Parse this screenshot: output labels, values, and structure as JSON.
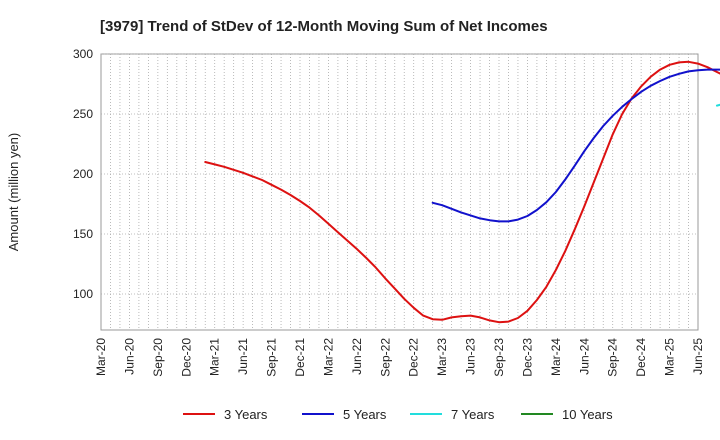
{
  "chart_data": {
    "type": "line",
    "title": "[3979]  Trend of StDev of 12-Month Moving Sum of Net Incomes",
    "ylabel": "Amount (million yen)",
    "xlabel": "",
    "ylim": [
      70,
      300
    ],
    "yticks": [
      100,
      150,
      200,
      250,
      300
    ],
    "x_categories": [
      "Mar-20",
      "Jun-20",
      "Sep-20",
      "Dec-20",
      "Mar-21",
      "Jun-21",
      "Sep-21",
      "Dec-21",
      "Mar-22",
      "Jun-22",
      "Sep-22",
      "Dec-22",
      "Mar-23",
      "Jun-23",
      "Sep-23",
      "Dec-23",
      "Mar-24",
      "Jun-24",
      "Sep-24",
      "Dec-24",
      "Mar-25",
      "Jun-25"
    ],
    "grid": true,
    "legend_position": "bottom",
    "series": [
      {
        "name": "3 Years",
        "color": "#dd1111",
        "points": [
          [
            "Feb-21",
            210
          ],
          [
            "Mar-21",
            208
          ],
          [
            "Apr-21",
            206
          ],
          [
            "May-21",
            203.5
          ],
          [
            "Jun-21",
            201
          ],
          [
            "Jul-21",
            198
          ],
          [
            "Aug-21",
            195
          ],
          [
            "Sep-21",
            191
          ],
          [
            "Oct-21",
            187
          ],
          [
            "Nov-21",
            182.5
          ],
          [
            "Dec-21",
            177.5
          ],
          [
            "Jan-22",
            172
          ],
          [
            "Feb-22",
            165.5
          ],
          [
            "Mar-22",
            158.5
          ],
          [
            "Apr-22",
            151.5
          ],
          [
            "May-22",
            144.5
          ],
          [
            "Jun-22",
            137.5
          ],
          [
            "Jul-22",
            130
          ],
          [
            "Aug-22",
            122
          ],
          [
            "Sep-22",
            113
          ],
          [
            "Oct-22",
            104.5
          ],
          [
            "Nov-22",
            96
          ],
          [
            "Dec-22",
            88.5
          ],
          [
            "Jan-23",
            82
          ],
          [
            "Feb-23",
            79
          ],
          [
            "Mar-23",
            78.5
          ],
          [
            "Apr-23",
            80.5
          ],
          [
            "May-23",
            81.5
          ],
          [
            "Jun-23",
            82
          ],
          [
            "Jul-23",
            80.5
          ],
          [
            "Aug-23",
            78
          ],
          [
            "Sep-23",
            76.5
          ],
          [
            "Oct-23",
            77
          ],
          [
            "Nov-23",
            80
          ],
          [
            "Dec-23",
            86
          ],
          [
            "Jan-24",
            95
          ],
          [
            "Feb-24",
            106
          ],
          [
            "Mar-24",
            120
          ],
          [
            "Apr-24",
            136
          ],
          [
            "May-24",
            154
          ],
          [
            "Jun-24",
            173
          ],
          [
            "Jul-24",
            193
          ],
          [
            "Aug-24",
            213
          ],
          [
            "Sep-24",
            233
          ],
          [
            "Oct-24",
            250
          ],
          [
            "Nov-24",
            263
          ],
          [
            "Dec-24",
            273
          ],
          [
            "Jan-25",
            281
          ],
          [
            "Feb-25",
            287
          ],
          [
            "Mar-25",
            291
          ],
          [
            "Apr-25",
            293
          ],
          [
            "May-25",
            293.5
          ],
          [
            "Jun-25",
            292
          ],
          [
            "Jul-25",
            289
          ],
          [
            "Aug-25",
            285
          ],
          [
            "Sep-25",
            281
          ],
          [
            "Oct-25",
            277
          ]
        ]
      },
      {
        "name": "5 Years",
        "color": "#1111cc",
        "points": [
          [
            "Feb-23",
            176
          ],
          [
            "Mar-23",
            174
          ],
          [
            "Apr-23",
            171
          ],
          [
            "May-23",
            168
          ],
          [
            "Jun-23",
            165.5
          ],
          [
            "Jul-23",
            163
          ],
          [
            "Aug-23",
            161.5
          ],
          [
            "Sep-23",
            160.5
          ],
          [
            "Oct-23",
            160.5
          ],
          [
            "Nov-23",
            162
          ],
          [
            "Dec-23",
            165
          ],
          [
            "Jan-24",
            170
          ],
          [
            "Feb-24",
            176.5
          ],
          [
            "Mar-24",
            185
          ],
          [
            "Apr-24",
            195.5
          ],
          [
            "May-24",
            207
          ],
          [
            "Jun-24",
            219
          ],
          [
            "Jul-24",
            230
          ],
          [
            "Aug-24",
            240
          ],
          [
            "Sep-24",
            248.5
          ],
          [
            "Oct-24",
            256
          ],
          [
            "Nov-24",
            262.5
          ],
          [
            "Dec-24",
            268.5
          ],
          [
            "Jan-25",
            273.5
          ],
          [
            "Feb-25",
            277.5
          ],
          [
            "Mar-25",
            281
          ],
          [
            "Apr-25",
            283.5
          ],
          [
            "May-25",
            285.5
          ],
          [
            "Jun-25",
            286.5
          ],
          [
            "Jul-25",
            287
          ],
          [
            "Aug-25",
            287
          ],
          [
            "Sep-25",
            287
          ]
        ]
      },
      {
        "name": "7 Years",
        "color": "#22dddd",
        "points": [
          [
            "Aug-25",
            257
          ],
          [
            "Sep-25",
            259
          ]
        ]
      },
      {
        "name": "10 Years",
        "color": "#228822",
        "points": []
      }
    ]
  }
}
